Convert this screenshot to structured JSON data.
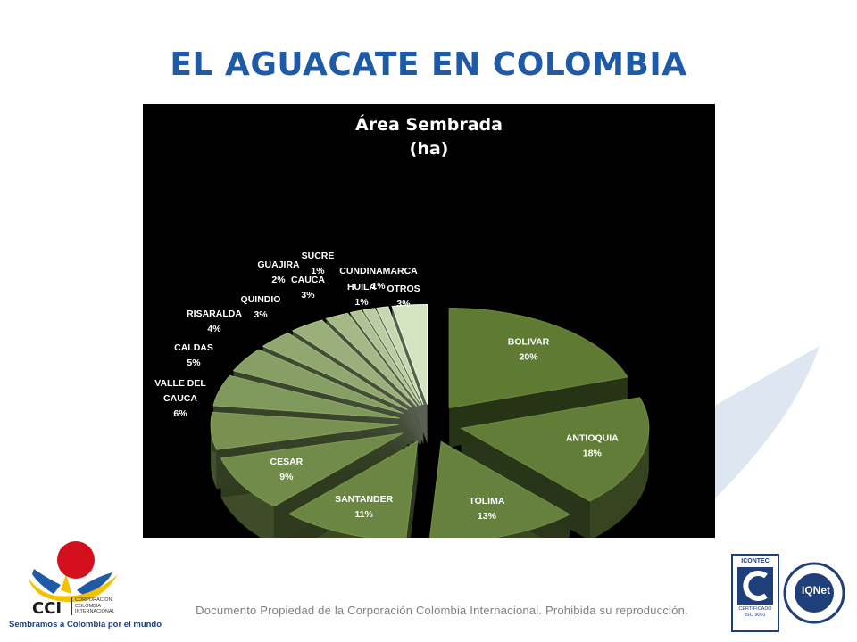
{
  "title": "EL AGUACATE EN COLOMBIA",
  "footer": "Documento Propiedad de la Corporación Colombia Internacional. Prohibida su reproducción.",
  "logo_left": {
    "name": "CCI",
    "subtitle": [
      "CORPORACIÓN",
      "COLOMBIA",
      "INTERNACIONAL"
    ],
    "tagline": "Sembramos a Colombia por el mundo"
  },
  "logo_right": {
    "icontec_label": "ICONTEC",
    "icontec_cert": [
      "CERTIFICADO",
      "ISO 9001"
    ],
    "iqnet_label": "IQNet"
  },
  "colors": {
    "title": "#1f5aa6",
    "chart_background": "#000000",
    "label_text": "#ffffff",
    "slice_face_dark": "#5e7a33",
    "slice_face_light": "#d4e3c2"
  },
  "chart_data": {
    "type": "pie",
    "style": "3d-exploded",
    "title": [
      "Área Sembrada",
      "(ha)"
    ],
    "slices": [
      {
        "label": "BOLIVAR",
        "value": 20,
        "display": "20%"
      },
      {
        "label": "ANTIOQUIA",
        "value": 18,
        "display": "18%"
      },
      {
        "label": "TOLIMA",
        "value": 13,
        "display": "13%"
      },
      {
        "label": "SANTANDER",
        "value": 11,
        "display": "11%"
      },
      {
        "label": "CESAR",
        "value": 9,
        "display": "9%"
      },
      {
        "label": "VALLE DEL CAUCA",
        "value": 6,
        "display": "6%"
      },
      {
        "label": "CALDAS",
        "value": 5,
        "display": "5%"
      },
      {
        "label": "RISARALDA",
        "value": 4,
        "display": "4%"
      },
      {
        "label": "QUINDIO",
        "value": 3,
        "display": "3%"
      },
      {
        "label": "CAUCA",
        "value": 3,
        "display": "3%"
      },
      {
        "label": "GUAJIRA",
        "value": 2,
        "display": "2%"
      },
      {
        "label": "SUCRE",
        "value": 1,
        "display": "1%"
      },
      {
        "label": "HUILA",
        "value": 1,
        "display": "1%"
      },
      {
        "label": "CUNDINAMARCA",
        "value": 1,
        "display": "1%"
      },
      {
        "label": "OTROS",
        "value": 3,
        "display": "3%"
      }
    ]
  }
}
